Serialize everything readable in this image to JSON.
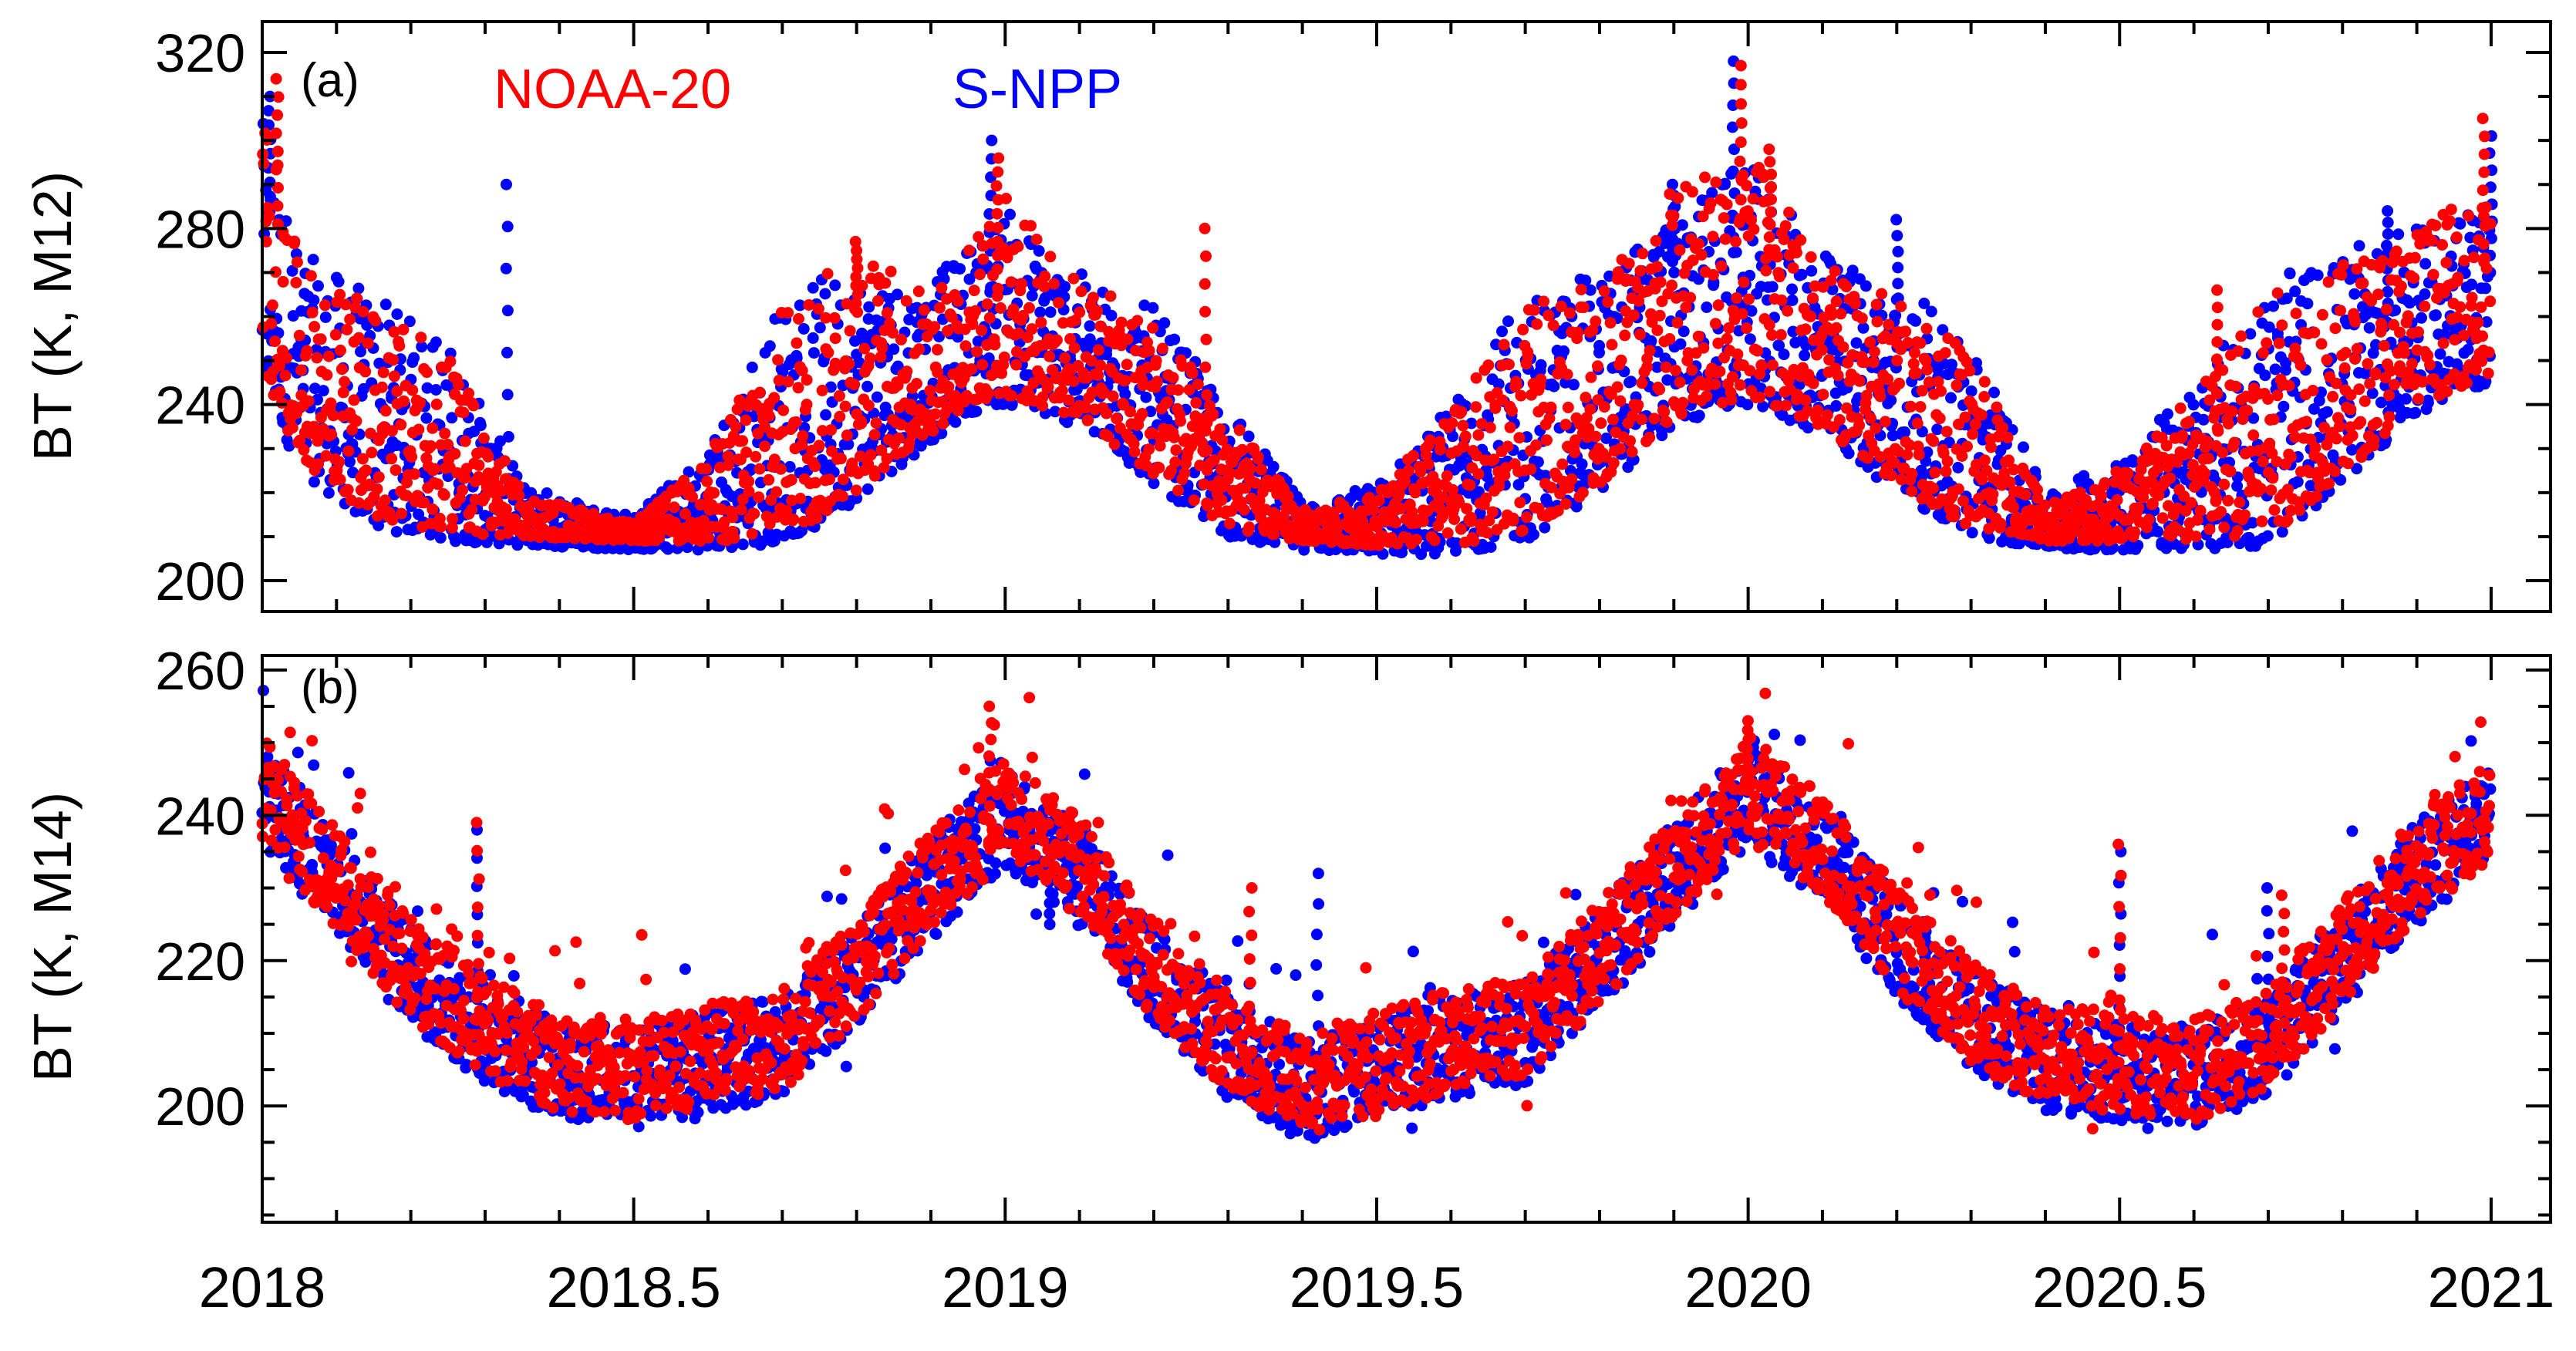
{
  "chart_data": [
    {
      "panel": "a",
      "panel_label": "(a)",
      "type": "scatter",
      "ylabel": "BT (K, M12)",
      "ylim": [
        193,
        327
      ],
      "yticks": [
        200,
        240,
        280,
        320
      ],
      "xlim": [
        2018,
        2021.08
      ],
      "legend": [
        {
          "name": "NOAA-20",
          "color": "#ff0000"
        },
        {
          "name": "S-NPP",
          "color": "#0000ff"
        }
      ],
      "series": [
        {
          "name": "S-NPP",
          "color": "#0000ff",
          "lower_envelope": {
            "x": [
              2018.0,
              2018.05,
              2018.15,
              2018.25,
              2018.35,
              2018.5,
              2018.65,
              2018.75,
              2018.85,
              2018.95,
              2019.0,
              2019.1,
              2019.2,
              2019.3,
              2019.4,
              2019.5,
              2019.6,
              2019.7,
              2019.8,
              2019.9,
              2020.0,
              2020.1,
              2020.2,
              2020.3,
              2020.4,
              2020.5,
              2020.6,
              2020.7,
              2020.8,
              2020.9,
              2021.0
            ],
            "y": [
              245,
              225,
              212,
              209,
              208,
              207,
              207,
              212,
              225,
              238,
              240,
              235,
              222,
              210,
              207,
              206,
              206,
              209,
              220,
              235,
              240,
              233,
              220,
              210,
              207,
              207,
              207,
              208,
              222,
              238,
              245
            ]
          },
          "upper_envelope": {
            "x": [
              2018.0,
              2018.05,
              2018.15,
              2018.25,
              2018.35,
              2018.5,
              2018.6,
              2018.7,
              2018.8,
              2018.9,
              2019.0,
              2019.1,
              2019.2,
              2019.3,
              2019.4,
              2019.5,
              2019.6,
              2019.7,
              2019.8,
              2019.9,
              2020.0,
              2020.1,
              2020.2,
              2020.3,
              2020.4,
              2020.5,
              2020.6,
              2020.7,
              2020.8,
              2020.9,
              2021.0
            ],
            "y": [
              305,
              275,
              265,
              255,
              222,
              215,
              230,
              265,
              272,
              268,
              285,
              270,
              262,
              240,
              218,
              222,
              240,
              265,
              270,
              285,
              295,
              275,
              268,
              255,
              220,
              228,
              245,
              268,
              275,
              280,
              285
            ]
          },
          "spikes": [
            {
              "x": 2018.01,
              "y": 310
            },
            {
              "x": 2018.33,
              "y": 290
            },
            {
              "x": 2018.98,
              "y": 300
            },
            {
              "x": 2019.9,
              "y": 290
            },
            {
              "x": 2019.98,
              "y": 318
            },
            {
              "x": 2020.2,
              "y": 282
            },
            {
              "x": 2020.86,
              "y": 284
            },
            {
              "x": 2021.0,
              "y": 301
            }
          ]
        },
        {
          "name": "NOAA-20",
          "color": "#ff0000",
          "lower_envelope": {
            "x": [
              2018.0,
              2018.05,
              2018.15,
              2018.25,
              2018.35,
              2018.5,
              2018.65,
              2018.75,
              2018.85,
              2018.95,
              2019.0,
              2019.1,
              2019.2,
              2019.3,
              2019.4,
              2019.5,
              2019.6,
              2019.7,
              2019.8,
              2019.9,
              2020.0,
              2020.1,
              2020.2,
              2020.3,
              2020.4,
              2020.5,
              2020.6,
              2020.7,
              2020.8,
              2020.9,
              2021.0
            ],
            "y": [
              248,
              228,
              214,
              211,
              210,
              209,
              209,
              214,
              227,
              240,
              242,
              237,
              224,
              212,
              209,
              208,
              208,
              211,
              222,
              237,
              242,
              235,
              222,
              212,
              209,
              209,
              209,
              210,
              224,
              240,
              247
            ]
          },
          "upper_envelope": {
            "x": [
              2018.0,
              2018.05,
              2018.15,
              2018.25,
              2018.35,
              2018.5,
              2018.6,
              2018.7,
              2018.8,
              2018.9,
              2019.0,
              2019.1,
              2019.2,
              2019.3,
              2019.4,
              2019.5,
              2019.6,
              2019.7,
              2019.8,
              2019.9,
              2020.0,
              2020.1,
              2020.2,
              2020.3,
              2020.4,
              2020.5,
              2020.6,
              2020.7,
              2020.8,
              2020.9,
              2021.0
            ],
            "y": [
              312,
              272,
              262,
              252,
              220,
              213,
              228,
              262,
              276,
              265,
              288,
              268,
              260,
              238,
              216,
              220,
              238,
              262,
              268,
              290,
              298,
              272,
              265,
              252,
              218,
              226,
              243,
              265,
              272,
              282,
              288
            ]
          },
          "spikes": [
            {
              "x": 2018.02,
              "y": 314
            },
            {
              "x": 2018.8,
              "y": 277
            },
            {
              "x": 2018.99,
              "y": 296
            },
            {
              "x": 2019.27,
              "y": 280
            },
            {
              "x": 2019.99,
              "y": 317
            },
            {
              "x": 2020.03,
              "y": 298
            },
            {
              "x": 2020.63,
              "y": 266
            },
            {
              "x": 2020.99,
              "y": 305
            }
          ]
        }
      ]
    },
    {
      "panel": "b",
      "panel_label": "(b)",
      "type": "scatter",
      "ylabel": "BT (K, M14)",
      "ylim": [
        184,
        262
      ],
      "yticks": [
        200,
        220,
        240,
        260
      ],
      "xlim": [
        2018,
        2021.08
      ],
      "xlabel_ticks": [
        "2018",
        "2018.5",
        "2019",
        "2019.5",
        "2020",
        "2020.5",
        "2021"
      ],
      "xticks": [
        2018,
        2018.5,
        2019,
        2019.5,
        2020,
        2020.5,
        2021
      ],
      "series": [
        {
          "name": "S-NPP",
          "color": "#0000ff",
          "center": {
            "x": [
              2018.0,
              2018.1,
              2018.2,
              2018.3,
              2018.4,
              2018.5,
              2018.6,
              2018.7,
              2018.8,
              2018.9,
              2019.0,
              2019.1,
              2019.2,
              2019.3,
              2019.4,
              2019.5,
              2019.6,
              2019.7,
              2019.8,
              2019.9,
              2020.0,
              2020.1,
              2020.2,
              2020.3,
              2020.4,
              2020.5,
              2020.6,
              2020.7,
              2020.8,
              2020.9,
              2021.0
            ],
            "y": [
              243,
              230,
              218,
              210,
              205,
              204,
              206,
              208,
              218,
              230,
              240,
              232,
              218,
              208,
              202,
              205,
              208,
              210,
              220,
              232,
              243,
              235,
              222,
              212,
              206,
              205,
              204,
              208,
              220,
              232,
              240
            ]
          },
          "spread": 7,
          "spikes": [
            {
              "x": 2018.29,
              "y": 238
            },
            {
              "x": 2019.06,
              "y": 225
            },
            {
              "x": 2019.42,
              "y": 232
            },
            {
              "x": 2020.24,
              "y": 224
            },
            {
              "x": 2020.5,
              "y": 235
            },
            {
              "x": 2020.7,
              "y": 230
            }
          ]
        },
        {
          "name": "NOAA-20",
          "color": "#ff0000",
          "center": {
            "x": [
              2018.0,
              2018.1,
              2018.2,
              2018.3,
              2018.4,
              2018.5,
              2018.6,
              2018.7,
              2018.8,
              2018.9,
              2019.0,
              2019.1,
              2019.2,
              2019.3,
              2019.4,
              2019.5,
              2019.6,
              2019.7,
              2019.8,
              2019.9,
              2020.0,
              2020.1,
              2020.2,
              2020.3,
              2020.4,
              2020.5,
              2020.6,
              2020.7,
              2020.8,
              2020.9,
              2021.0
            ],
            "y": [
              244,
              231,
              219,
              211,
              206,
              205,
              207,
              209,
              219,
              231,
              241,
              233,
              219,
              209,
              203,
              206,
              209,
              211,
              221,
              233,
              244,
              236,
              223,
              213,
              207,
              206,
              205,
              209,
              221,
              233,
              241
            ]
          },
          "spread": 7,
          "spikes": [
            {
              "x": 2018.29,
              "y": 239
            },
            {
              "x": 2018.98,
              "y": 255
            },
            {
              "x": 2019.33,
              "y": 230
            },
            {
              "x": 2020.0,
              "y": 253
            },
            {
              "x": 2020.5,
              "y": 236
            },
            {
              "x": 2020.72,
              "y": 229
            }
          ]
        }
      ]
    }
  ]
}
